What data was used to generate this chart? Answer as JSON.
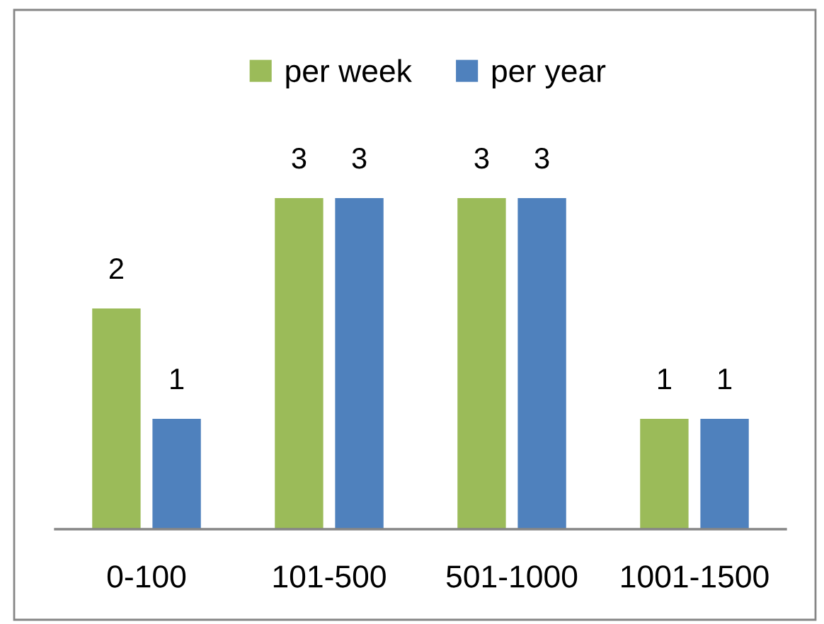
{
  "chart_data": {
    "type": "bar",
    "categories": [
      "0-100",
      "101-500",
      "501-1000",
      "1001-1500"
    ],
    "series": [
      {
        "name": "per week",
        "color": "#9bbb59",
        "values": [
          2,
          3,
          3,
          1
        ]
      },
      {
        "name": "per year",
        "color": "#4f81bd",
        "values": [
          1,
          3,
          3,
          1
        ]
      }
    ],
    "data_labels": true,
    "legend": "top",
    "grid": false
  }
}
